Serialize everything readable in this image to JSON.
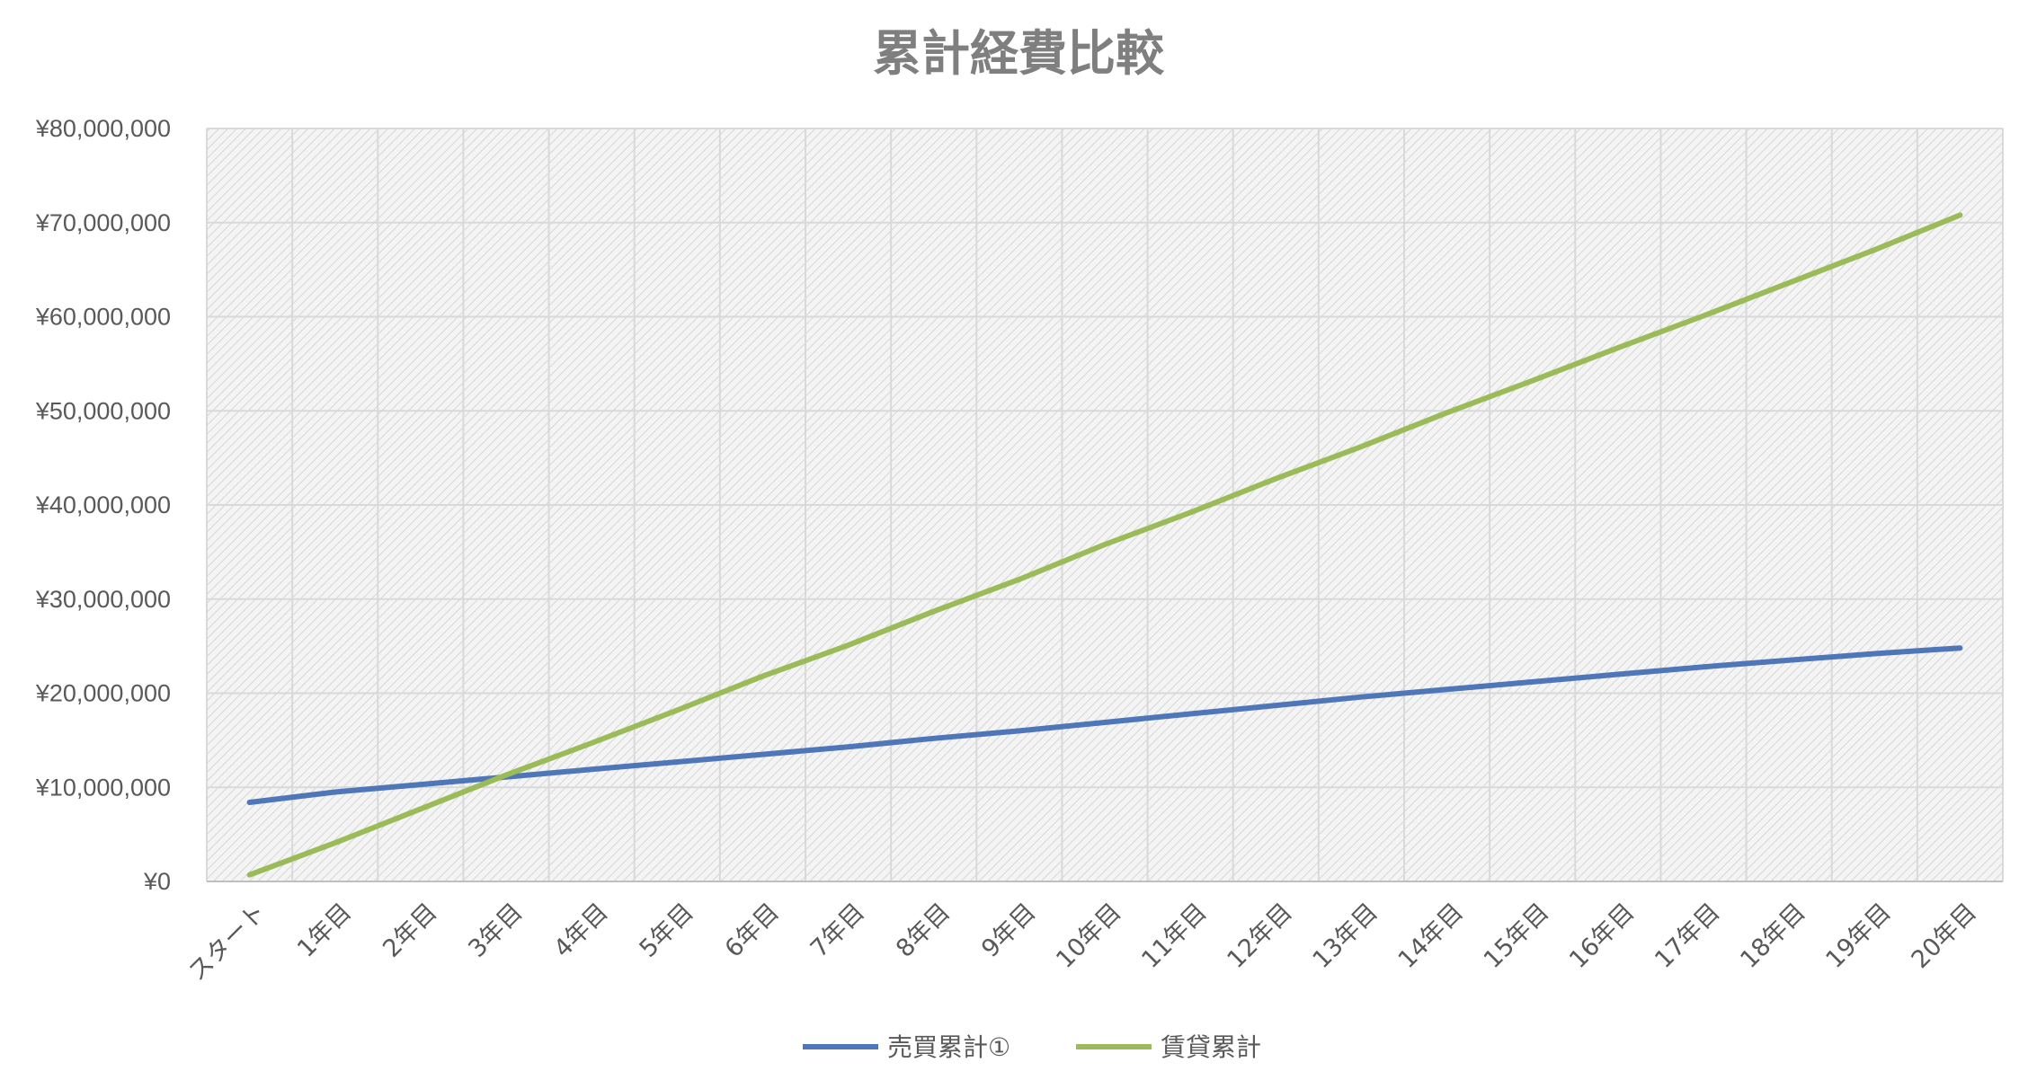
{
  "chart_data": {
    "type": "line",
    "title": "累計経費比較",
    "xlabel": "",
    "ylabel": "",
    "categories": [
      "スタート",
      "1年目",
      "2年目",
      "3年目",
      "4年目",
      "5年目",
      "6年目",
      "7年目",
      "8年目",
      "9年目",
      "10年目",
      "11年目",
      "12年目",
      "13年目",
      "14年目",
      "15年目",
      "16年目",
      "17年目",
      "18年目",
      "19年目",
      "20年目"
    ],
    "series": [
      {
        "name": "売買累計①",
        "color": "#4f76b8",
        "values": [
          8400000,
          9500000,
          10300000,
          11100000,
          11900000,
          12700000,
          13500000,
          14300000,
          15200000,
          16000000,
          16900000,
          17800000,
          18700000,
          19600000,
          20400000,
          21200000,
          22000000,
          22800000,
          23500000,
          24200000,
          24800000
        ]
      },
      {
        "name": "賃貸累計",
        "color": "#9bbb59",
        "values": [
          700000,
          4100000,
          7700000,
          11300000,
          14700000,
          18200000,
          21800000,
          25100000,
          28700000,
          32100000,
          35800000,
          39200000,
          42800000,
          46200000,
          49800000,
          53200000,
          56700000,
          60100000,
          63600000,
          67100000,
          70800000
        ]
      }
    ],
    "ylim": [
      0,
      80000000
    ],
    "yticks": [
      {
        "value": 0,
        "label": "¥0"
      },
      {
        "value": 10000000,
        "label": "¥10,000,000"
      },
      {
        "value": 20000000,
        "label": "¥20,000,000"
      },
      {
        "value": 30000000,
        "label": "¥30,000,000"
      },
      {
        "value": 40000000,
        "label": "¥40,000,000"
      },
      {
        "value": 50000000,
        "label": "¥50,000,000"
      },
      {
        "value": 60000000,
        "label": "¥60,000,000"
      },
      {
        "value": 70000000,
        "label": "¥70,000,000"
      },
      {
        "value": 80000000,
        "label": "¥80,000,000"
      }
    ],
    "grid": true,
    "legend_position": "bottom-center"
  }
}
